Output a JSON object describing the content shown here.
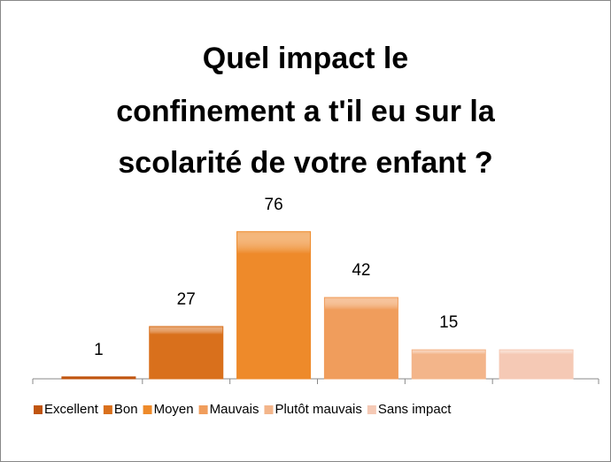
{
  "chart_data": {
    "type": "bar",
    "title": [
      "Quel impact le",
      "confinement a t'il eu sur la",
      "scolarité de votre enfant ?"
    ],
    "categories": [
      "Excellent",
      "Bon",
      "Moyen",
      "Mauvais",
      "Plutôt mauvais",
      "Sans impact"
    ],
    "values": [
      1,
      27,
      76,
      42,
      15,
      15
    ],
    "value_labels": [
      "1",
      "27",
      "76",
      "42",
      "15",
      null
    ],
    "colors": [
      "#c0550f",
      "#d9701c",
      "#ee8a2a",
      "#f09d5c",
      "#f3b58a",
      "#f5c9b5"
    ],
    "ylim": [
      0,
      80
    ],
    "legend": "bottom"
  }
}
